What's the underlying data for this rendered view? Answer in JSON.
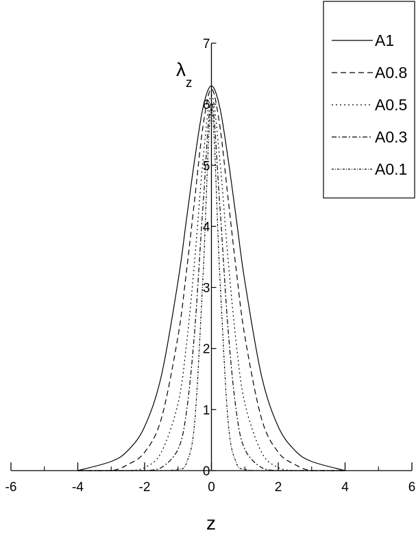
{
  "chart_data": {
    "type": "line",
    "title": "",
    "xlabel": "z",
    "ylabel": "λ",
    "ylabel_subscript": "z",
    "xlim": [
      -6,
      6
    ],
    "ylim": [
      0,
      7
    ],
    "x_ticks": [
      -6,
      -4,
      -2,
      0,
      2,
      4,
      6
    ],
    "y_ticks": [
      0,
      1,
      2,
      3,
      4,
      5,
      6,
      7
    ],
    "x_tick_labels": [
      "-6",
      "-4",
      "-2",
      "0",
      "2",
      "4",
      "6"
    ],
    "y_tick_labels": [
      "0",
      "1",
      "2",
      "3",
      "4",
      "5",
      "6",
      "7"
    ],
    "grid": false,
    "legend_position": "top-right",
    "x": [
      -4,
      -3,
      -2.5,
      -2,
      -1.5,
      -1,
      -0.75,
      -0.5,
      -0.25,
      0,
      0.25,
      0.5,
      0.75,
      1,
      1.5,
      2,
      2.5,
      3,
      4
    ],
    "series": [
      {
        "name": "A1",
        "dash": "",
        "values": [
          0.0,
          0.15,
          0.33,
          0.72,
          1.55,
          3.1,
          4.1,
          5.1,
          5.95,
          6.3,
          5.95,
          5.1,
          4.1,
          3.1,
          1.55,
          0.72,
          0.33,
          0.15,
          0.0
        ]
      },
      {
        "name": "A0.8",
        "dash": "8,5",
        "values": [
          0.0,
          0.0,
          0.1,
          0.3,
          0.85,
          2.2,
          3.25,
          4.45,
          5.65,
          6.25,
          5.65,
          4.45,
          3.25,
          2.2,
          0.85,
          0.3,
          0.1,
          0.0,
          0.0
        ]
      },
      {
        "name": "A0.5",
        "dash": "2,4",
        "values": [
          0.0,
          0.0,
          0.0,
          0.05,
          0.3,
          1.1,
          2.05,
          3.45,
          5.1,
          6.15,
          5.1,
          3.45,
          2.05,
          1.1,
          0.3,
          0.05,
          0.0,
          0.0,
          0.0
        ]
      },
      {
        "name": "A0.3",
        "dash": "7,3,2,3",
        "values": [
          0.0,
          0.0,
          0.0,
          0.0,
          0.05,
          0.35,
          0.95,
          2.3,
          4.35,
          6.05,
          4.35,
          2.3,
          0.95,
          0.35,
          0.05,
          0.0,
          0.0,
          0.0,
          0.0
        ]
      },
      {
        "name": "A0.1",
        "dash": "3,2,1,2",
        "values": [
          0.0,
          0.0,
          0.0,
          0.0,
          0.0,
          0.02,
          0.12,
          0.8,
          3.2,
          5.95,
          3.2,
          0.8,
          0.12,
          0.02,
          0.0,
          0.0,
          0.0,
          0.0,
          0.0
        ]
      }
    ]
  }
}
